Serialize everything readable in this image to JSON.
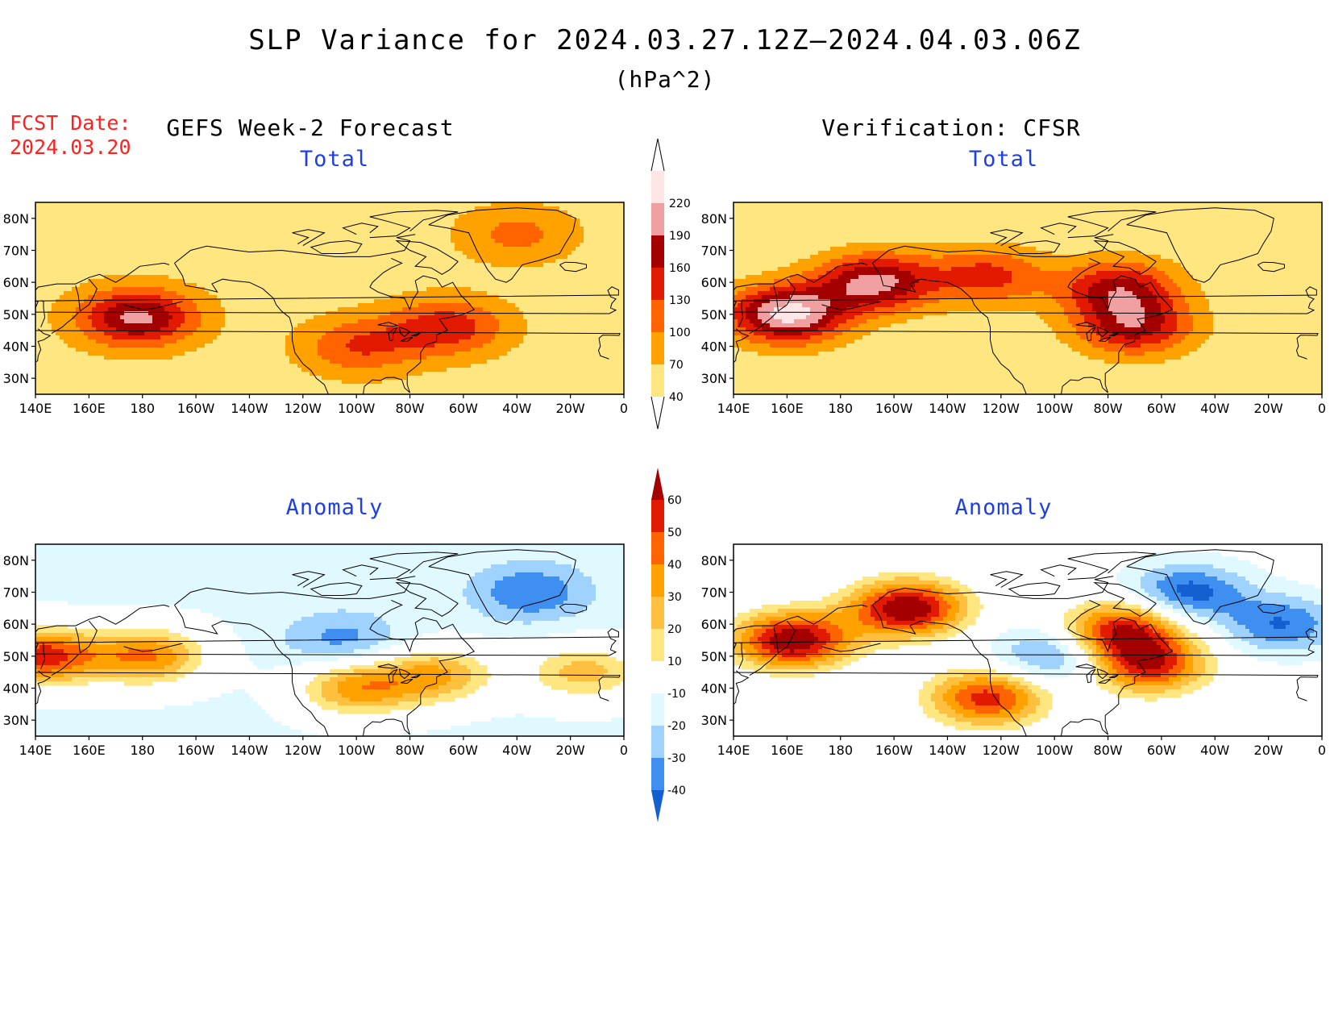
{
  "title": "SLP Variance for 2024.03.27.12Z–2024.04.03.06Z",
  "units": "(hPa^2)",
  "fcst_label": "FCST Date:",
  "fcst_date": "2024.03.20",
  "columns": {
    "left": "GEFS Week-2 Forecast",
    "right": "Verification: CFSR"
  },
  "panels": {
    "forecast_total": "Total",
    "verification_total": "Total",
    "forecast_anomaly": "Anomaly",
    "verification_anomaly": "Anomaly"
  },
  "lat_labels": [
    "80N",
    "70N",
    "60N",
    "50N",
    "40N",
    "30N"
  ],
  "lon_labels": [
    "140E",
    "160E",
    "180",
    "160W",
    "140W",
    "120W",
    "100W",
    "80W",
    "60W",
    "40W",
    "20W",
    "0"
  ],
  "total_scale": {
    "levels": [
      "40",
      "70",
      "100",
      "130",
      "160",
      "190",
      "220"
    ],
    "colors": [
      "#ffe680",
      "#ffa200",
      "#ff6400",
      "#e11a00",
      "#a50000",
      "#f0a0a0",
      "#ffe6e6"
    ]
  },
  "anomaly_scale": {
    "levels": [
      "60",
      "50",
      "40",
      "30",
      "20",
      "10",
      "-10",
      "-20",
      "-30",
      "-40"
    ],
    "colors": [
      "#a50000",
      "#e11a00",
      "#ff6400",
      "#ffa200",
      "#ffc040",
      "#ffe680",
      "#ffffff",
      "#e0f8ff",
      "#a0d2ff",
      "#3e8ff0",
      "#1560d0"
    ]
  },
  "fields": {
    "forecast_total": [
      {
        "lon": 178,
        "lat": 49,
        "value": 200
      },
      {
        "lon": -66,
        "lat": 46,
        "value": 150
      },
      {
        "lon": -99,
        "lat": 40,
        "value": 130
      },
      {
        "lon": -40,
        "lat": 75,
        "value": 110
      }
    ],
    "verification_total": [
      {
        "lon": 160,
        "lat": 50,
        "value": 230
      },
      {
        "lon": -167,
        "lat": 60,
        "value": 200
      },
      {
        "lon": -76,
        "lat": 58,
        "value": 170
      },
      {
        "lon": -70,
        "lat": 46,
        "value": 170
      },
      {
        "lon": -125,
        "lat": 62,
        "value": 140
      }
    ],
    "forecast_anomaly": [
      {
        "lon": 142,
        "lat": 50,
        "value": 55
      },
      {
        "lon": -178,
        "lat": 50,
        "value": 40
      },
      {
        "lon": -100,
        "lat": 40,
        "value": 35
      },
      {
        "lon": -70,
        "lat": 44,
        "value": 30
      },
      {
        "lon": -15,
        "lat": 45,
        "value": 25
      },
      {
        "lon": -35,
        "lat": 70,
        "value": -40
      },
      {
        "lon": -105,
        "lat": 55,
        "value": -35
      }
    ],
    "verification_anomaly": [
      {
        "lon": 162,
        "lat": 55,
        "value": 70
      },
      {
        "lon": -155,
        "lat": 65,
        "value": 70
      },
      {
        "lon": -75,
        "lat": 58,
        "value": 60
      },
      {
        "lon": -65,
        "lat": 47,
        "value": 55
      },
      {
        "lon": -125,
        "lat": 37,
        "value": 55
      },
      {
        "lon": -50,
        "lat": 70,
        "value": -45
      },
      {
        "lon": -100,
        "lat": 50,
        "value": -40
      },
      {
        "lon": -15,
        "lat": 60,
        "value": -40
      }
    ]
  }
}
